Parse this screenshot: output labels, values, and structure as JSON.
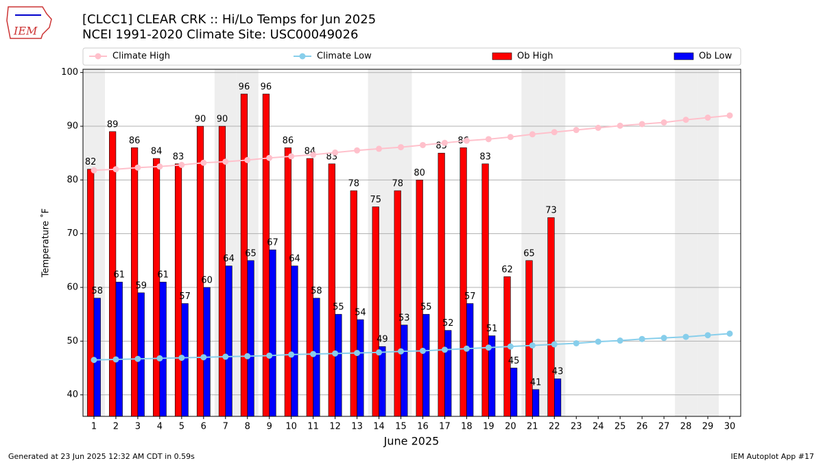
{
  "chart_data": {
    "type": "bar",
    "title": "[CLCC1] CLEAR CRK :: Hi/Lo Temps for Jun 2025",
    "subtitle": "NCEI 1991-2020 Climate Site: USC00049026",
    "x_label": "June 2025",
    "y_label": "Temperature ˚F",
    "footer_left": "Generated at 23 Jun 2025 12:32 AM CDT in 0.59s",
    "footer_right": "IEM Autoplot App #17",
    "logo": "IEM",
    "x": [
      1,
      2,
      3,
      4,
      5,
      6,
      7,
      8,
      9,
      10,
      11,
      12,
      13,
      14,
      15,
      16,
      17,
      18,
      19,
      20,
      21,
      22,
      23,
      24,
      25,
      26,
      27,
      28,
      29,
      30
    ],
    "xlim": [
      0.5,
      30.5
    ],
    "xticks": [
      1,
      2,
      3,
      4,
      5,
      6,
      7,
      8,
      9,
      10,
      11,
      12,
      13,
      14,
      15,
      16,
      17,
      18,
      19,
      20,
      21,
      22,
      23,
      24,
      25,
      26,
      27,
      28,
      29,
      30
    ],
    "ylim": [
      36,
      100.6
    ],
    "yticks": [
      40,
      50,
      60,
      70,
      80,
      90,
      100
    ],
    "grid": true,
    "legend": "top",
    "shaded_x": [
      1,
      7,
      8,
      14,
      15,
      21,
      22,
      28,
      29
    ],
    "shade_color": "#eeeeee",
    "series": [
      {
        "name": "Climate High",
        "type": "line",
        "color": "#ffc0cb",
        "values": [
          81.8,
          82.0,
          82.3,
          82.5,
          82.8,
          83.2,
          83.4,
          83.7,
          84.1,
          84.4,
          84.7,
          85.1,
          85.5,
          85.8,
          86.1,
          86.5,
          86.9,
          87.3,
          87.6,
          88.0,
          88.5,
          88.9,
          89.3,
          89.7,
          90.1,
          90.4,
          90.7,
          91.2,
          91.6,
          92.0
        ]
      },
      {
        "name": "Climate Low",
        "type": "line",
        "color": "#87ceeb",
        "values": [
          46.5,
          46.6,
          46.7,
          46.8,
          46.9,
          47.0,
          47.1,
          47.2,
          47.3,
          47.5,
          47.6,
          47.7,
          47.8,
          47.9,
          48.1,
          48.2,
          48.4,
          48.6,
          48.8,
          49.0,
          49.2,
          49.4,
          49.6,
          49.9,
          50.1,
          50.4,
          50.6,
          50.8,
          51.1,
          51.4
        ]
      },
      {
        "name": "Ob High",
        "type": "bar",
        "color": "#ff0000",
        "values": [
          82,
          89,
          86,
          84,
          83,
          90,
          90,
          96,
          96,
          86,
          84,
          83,
          78,
          75,
          78,
          80,
          85,
          86,
          83,
          62,
          65,
          73,
          null,
          null,
          null,
          null,
          null,
          null,
          null,
          null
        ]
      },
      {
        "name": "Ob Low",
        "type": "bar",
        "color": "#0000ff",
        "values": [
          58,
          61,
          59,
          61,
          57,
          60,
          64,
          65,
          67,
          64,
          58,
          55,
          54,
          49,
          53,
          55,
          52,
          57,
          51,
          45,
          41,
          43,
          null,
          null,
          null,
          null,
          null,
          null,
          null,
          null
        ]
      }
    ]
  }
}
